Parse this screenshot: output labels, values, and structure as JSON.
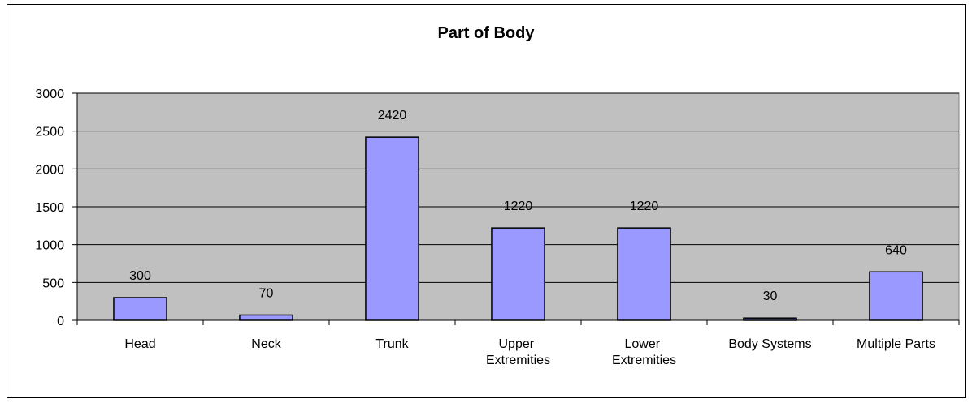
{
  "chart_data": {
    "type": "bar",
    "title": "Part of Body",
    "categories": [
      "Head",
      "Neck",
      "Trunk",
      "Upper Extremities",
      "Lower Extremities",
      "Body Systems",
      "Multiple Parts"
    ],
    "values": [
      300,
      70,
      2420,
      1220,
      1220,
      30,
      640
    ],
    "color": "#9999ff",
    "ylim": [
      0,
      3000
    ],
    "yticks": [
      0,
      500,
      1000,
      1500,
      2000,
      2500,
      3000
    ],
    "grid": true
  }
}
